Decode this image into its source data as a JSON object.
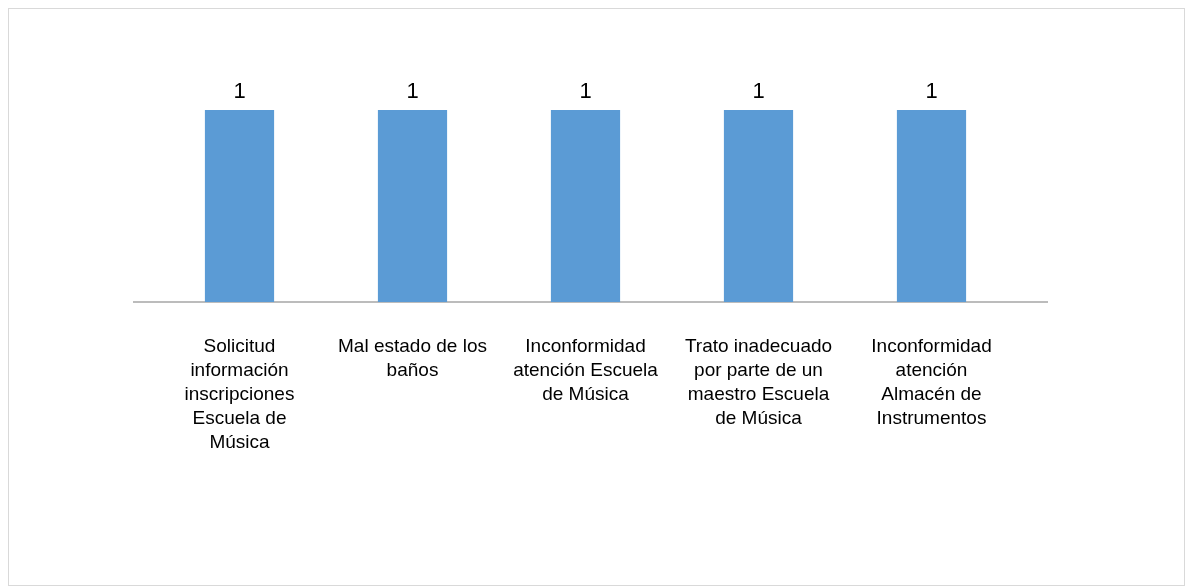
{
  "chart_data": {
    "type": "bar",
    "categories": [
      "Solicitud información inscripciones Escuela de Música",
      "Mal estado de los baños",
      "Inconformidad atención Escuela de Música",
      "Trato inadecuado por parte de un maestro Escuela de Música",
      "Inconformidad atención Almacén de Instrumentos"
    ],
    "values": [
      1,
      1,
      1,
      1,
      1
    ],
    "color": "#5b9bd5",
    "data_labels": true
  }
}
